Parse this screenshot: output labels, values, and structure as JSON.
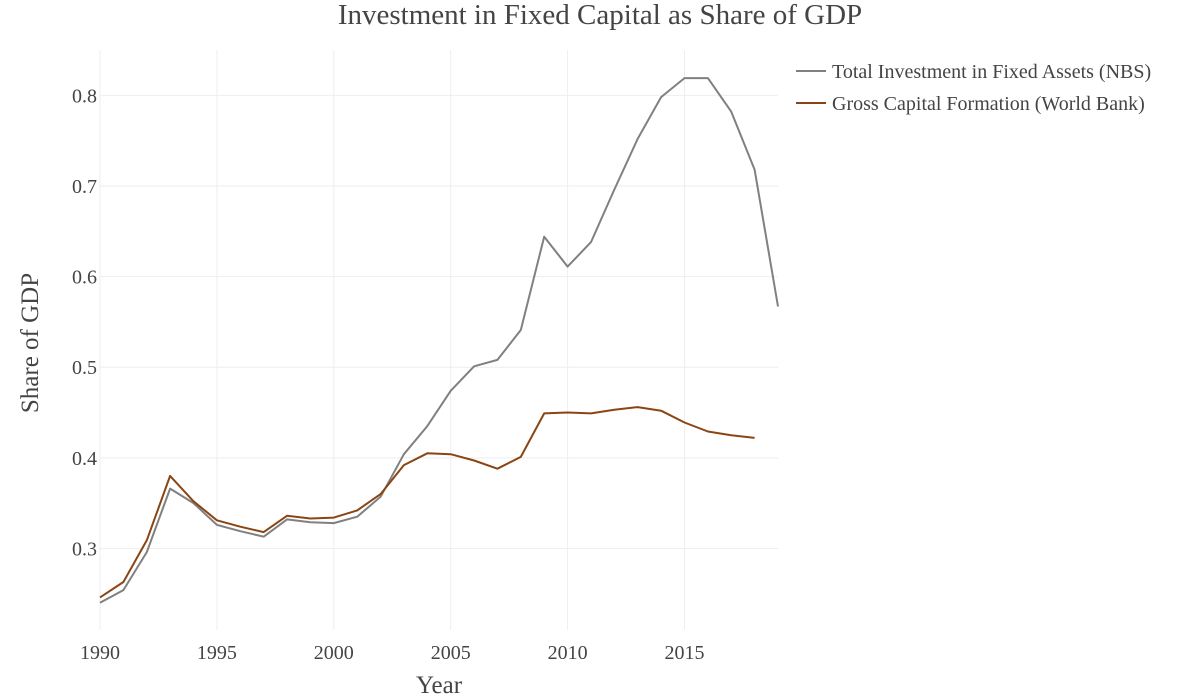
{
  "chart_data": {
    "type": "line",
    "title": "Investment in Fixed Capital as Share of GDP",
    "xlabel": "Year",
    "ylabel": "Share of GDP",
    "xlim": [
      1990,
      2019
    ],
    "ylim": [
      0.21,
      0.85
    ],
    "xticks": [
      1990,
      1995,
      2000,
      2005,
      2010,
      2015
    ],
    "yticks": [
      0.3,
      0.4,
      0.5,
      0.6,
      0.7,
      0.8
    ],
    "grid": true,
    "legend_position": "top-right",
    "series": [
      {
        "name": "Total Investment in Fixed Assets (NBS)",
        "color": "#808080",
        "x": [
          1990,
          1991,
          1992,
          1993,
          1994,
          1995,
          1996,
          1997,
          1998,
          1999,
          2000,
          2001,
          2002,
          2003,
          2004,
          2005,
          2006,
          2007,
          2008,
          2009,
          2010,
          2011,
          2012,
          2013,
          2014,
          2015,
          2016,
          2017,
          2018,
          2019
        ],
        "y": [
          0.24,
          0.254,
          0.296,
          0.366,
          0.35,
          0.326,
          0.319,
          0.313,
          0.332,
          0.329,
          0.328,
          0.335,
          0.357,
          0.404,
          0.435,
          0.474,
          0.501,
          0.508,
          0.541,
          0.644,
          0.611,
          0.638,
          0.696,
          0.752,
          0.798,
          0.819,
          0.819,
          0.782,
          0.718,
          0.567
        ]
      },
      {
        "name": "Gross Capital Formation (World Bank)",
        "color": "#8B4513",
        "x": [
          1990,
          1991,
          1992,
          1993,
          1994,
          1995,
          1996,
          1997,
          1998,
          1999,
          2000,
          2001,
          2002,
          2003,
          2004,
          2005,
          2006,
          2007,
          2008,
          2009,
          2010,
          2011,
          2012,
          2013,
          2014,
          2015,
          2016,
          2017,
          2018
        ],
        "y": [
          0.246,
          0.263,
          0.309,
          0.38,
          0.352,
          0.331,
          0.324,
          0.318,
          0.336,
          0.333,
          0.334,
          0.342,
          0.36,
          0.392,
          0.405,
          0.404,
          0.397,
          0.388,
          0.401,
          0.449,
          0.45,
          0.449,
          0.453,
          0.456,
          0.452,
          0.439,
          0.429,
          0.425,
          0.422
        ]
      }
    ]
  }
}
